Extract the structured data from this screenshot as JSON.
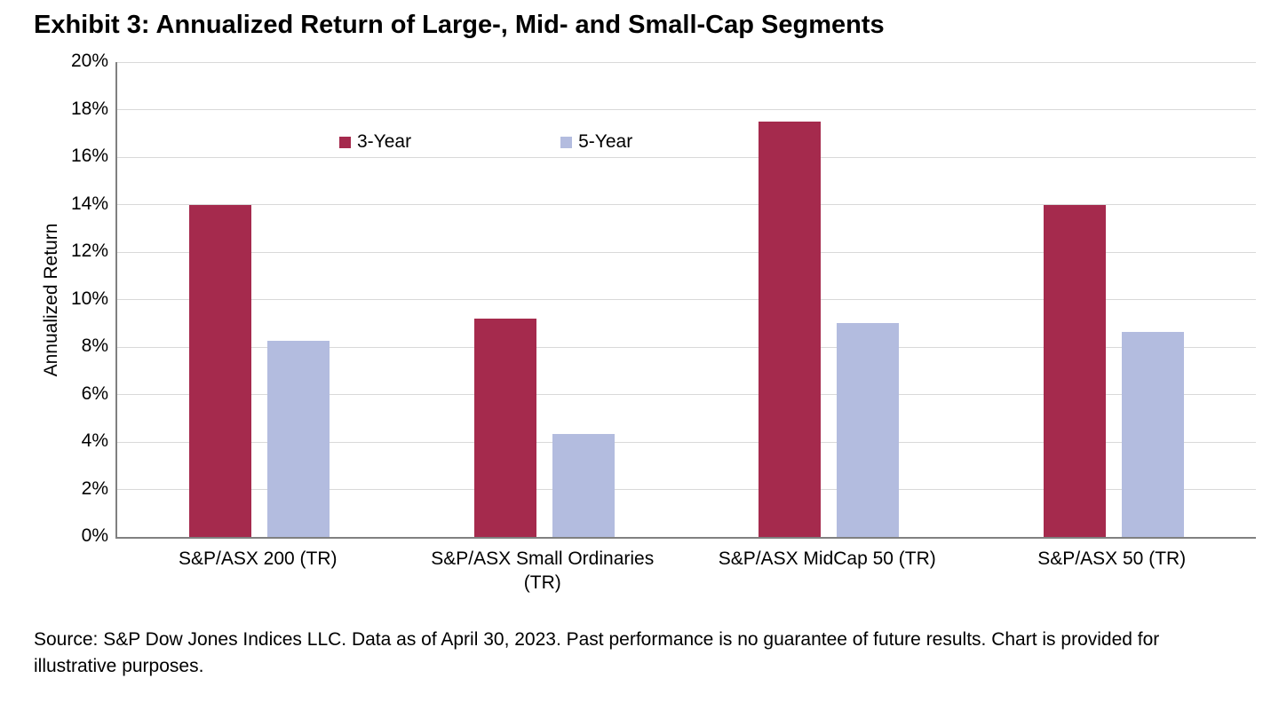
{
  "title": "Exhibit 3: Annualized Return of Large-, Mid- and Small-Cap Segments",
  "source": "Source: S&P Dow Jones Indices LLC. Data as of April 30, 2023. Past performance is no guarantee of future results. Chart is provided for illustrative purposes.",
  "chart_data": {
    "type": "bar",
    "title": "Exhibit 3: Annualized Return of Large-, Mid- and Small-Cap Segments",
    "xlabel": "",
    "ylabel": "Annualized Return",
    "ylim": [
      0,
      20
    ],
    "ytick_step": 2,
    "ytick_suffix": "%",
    "grid": true,
    "legend_position": "top-inside",
    "categories": [
      "S&P/ASX 200 (TR)",
      "S&P/ASX Small Ordinaries (TR)",
      "S&P/ASX MidCap 50 (TR)",
      "S&P/ASX 50 (TR)"
    ],
    "series": [
      {
        "name": "3-Year",
        "color": "#A52A4D",
        "values": [
          14.0,
          9.2,
          17.5,
          14.0
        ]
      },
      {
        "name": "5-Year",
        "color": "#B3BCDF",
        "values": [
          8.25,
          4.35,
          9.0,
          8.65
        ]
      }
    ]
  }
}
